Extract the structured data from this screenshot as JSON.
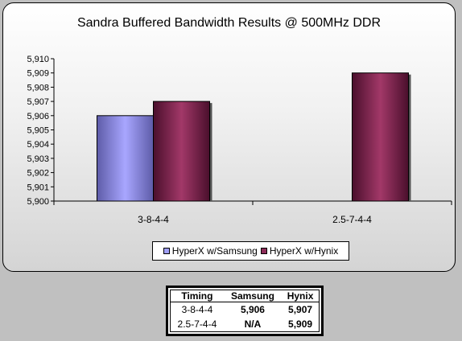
{
  "chart_data": {
    "type": "bar",
    "title": "Sandra Buffered Bandwidth Results @ 500MHz DDR",
    "categories": [
      "3-8-4-4",
      "2.5-7-4-4"
    ],
    "series": [
      {
        "name": "HyperX w/Samsung",
        "values": [
          5906,
          null
        ],
        "color": "#a09ff8"
      },
      {
        "name": "HyperX w/Hynix",
        "values": [
          5907,
          5909
        ],
        "color": "#8c2c58"
      }
    ],
    "ylim": [
      5900,
      5910
    ],
    "yticks": [
      "5,900",
      "5,901",
      "5,902",
      "5,903",
      "5,904",
      "5,905",
      "5,906",
      "5,907",
      "5,908",
      "5,909",
      "5,910"
    ],
    "legend_position": "bottom",
    "grid": false
  },
  "table": {
    "headers": [
      "Timing",
      "Samsung",
      "Hynix"
    ],
    "rows": [
      [
        "3-8-4-4",
        "5,906",
        "5,907"
      ],
      [
        "2.5-7-4-4",
        "N/A",
        "5,909"
      ]
    ]
  }
}
